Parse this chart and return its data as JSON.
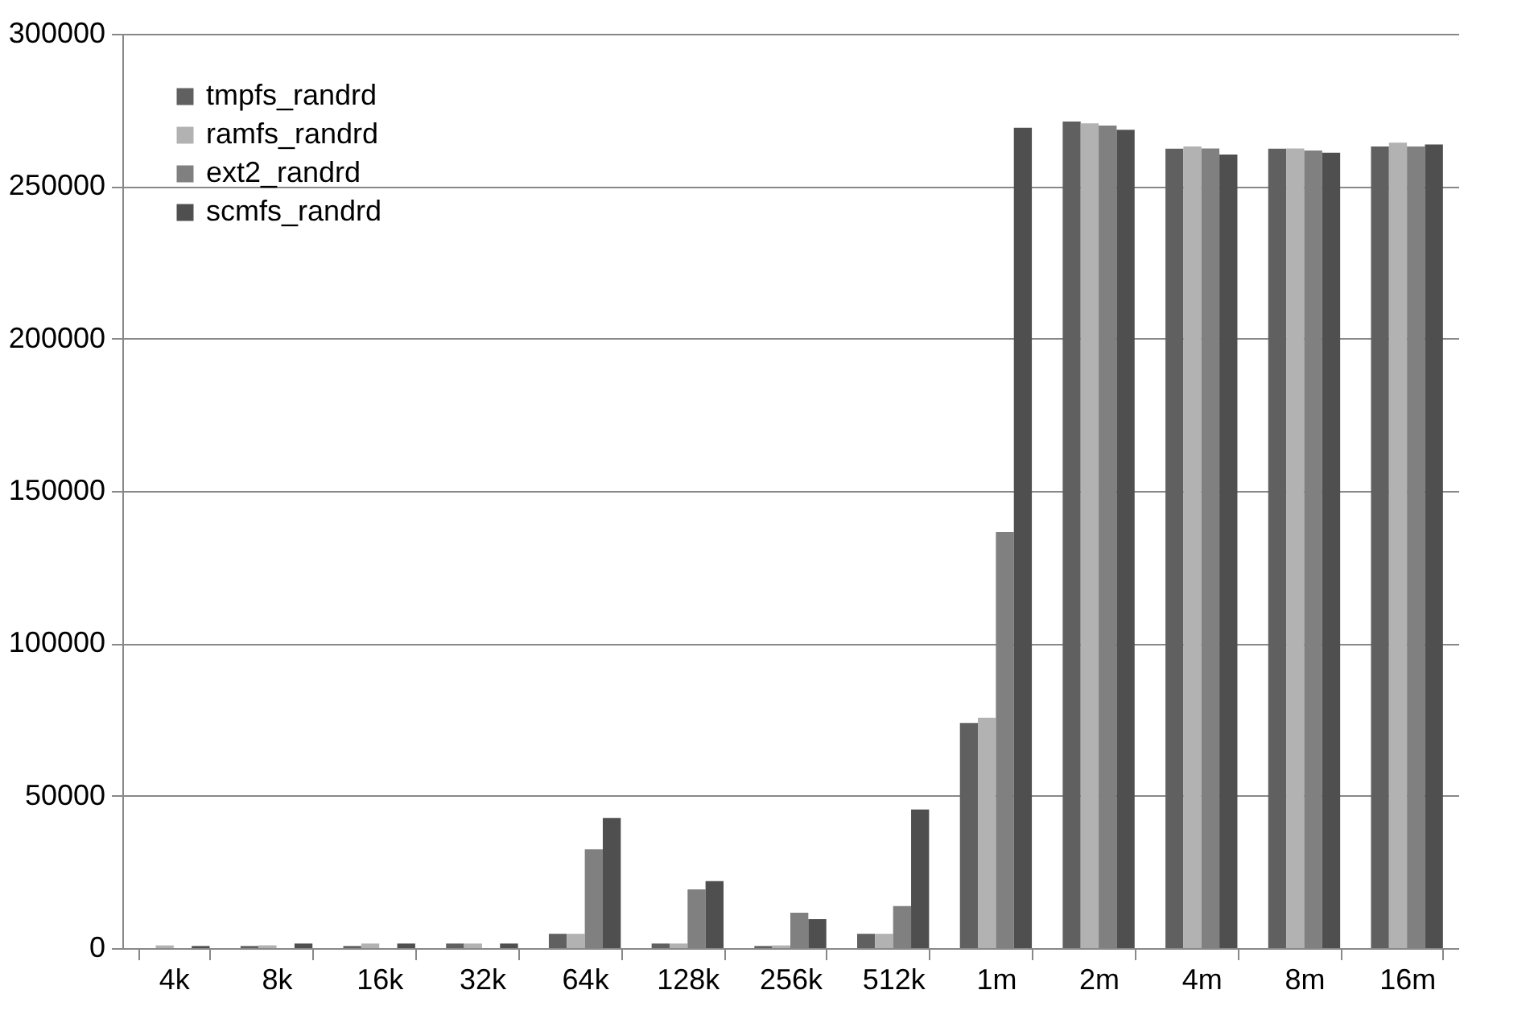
{
  "chart_data": {
    "type": "bar",
    "categories": [
      "4k",
      "8k",
      "16k",
      "32k",
      "64k",
      "128k",
      "256k",
      "512k",
      "1m",
      "2m",
      "4m",
      "8m",
      "16m"
    ],
    "series": [
      {
        "name": "tmpfs_randrd",
        "color": "#606060",
        "values": [
          null,
          700,
          700,
          1500,
          4700,
          1500,
          700,
          4700,
          73900,
          271200,
          262300,
          262300,
          263000
        ]
      },
      {
        "name": "ramfs_randrd",
        "color": "#b2b2b2",
        "values": [
          900,
          900,
          1500,
          1500,
          4700,
          1500,
          900,
          4700,
          75600,
          270600,
          263000,
          262400,
          264300
        ]
      },
      {
        "name": "ext2_randrd",
        "color": "#808080",
        "values": [
          null,
          null,
          null,
          null,
          32400,
          19300,
          11600,
          13800,
          136500,
          269900,
          262400,
          261700,
          263000
        ]
      },
      {
        "name": "scmfs_randrd",
        "color": "#4f4f4f",
        "values": [
          700,
          1500,
          1500,
          1500,
          42700,
          22000,
          9500,
          45500,
          269200,
          268500,
          260400,
          261000,
          263700
        ]
      }
    ],
    "ylim": [
      0,
      300000
    ],
    "yticks": [
      0,
      50000,
      100000,
      150000,
      200000,
      250000,
      300000
    ],
    "grid": "y",
    "legend": "top left"
  }
}
